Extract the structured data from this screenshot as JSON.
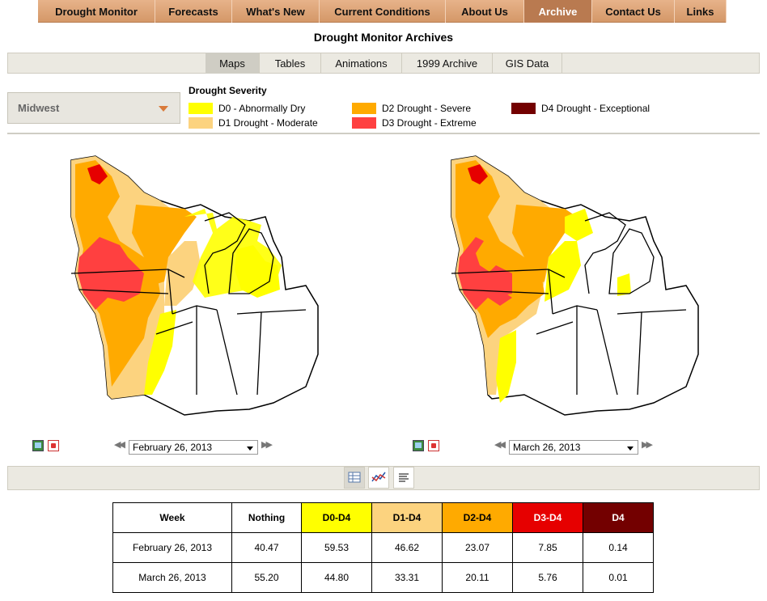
{
  "nav": {
    "items": [
      {
        "label": "Drought Monitor",
        "active": false
      },
      {
        "label": "Forecasts",
        "active": false
      },
      {
        "label": "What's New",
        "active": false
      },
      {
        "label": "Current Conditions",
        "active": false
      },
      {
        "label": "About Us",
        "active": false
      },
      {
        "label": "Archive",
        "active": true
      },
      {
        "label": "Contact Us",
        "active": false
      },
      {
        "label": "Links",
        "active": false
      }
    ]
  },
  "page_title": "Drought Monitor Archives",
  "subtabs": [
    {
      "label": "Maps",
      "active": true
    },
    {
      "label": "Tables",
      "active": false
    },
    {
      "label": "Animations",
      "active": false
    },
    {
      "label": "1999 Archive",
      "active": false
    },
    {
      "label": "GIS Data",
      "active": false
    }
  ],
  "region": {
    "selected": "Midwest"
  },
  "legend": {
    "title": "Drought Severity",
    "items": [
      {
        "label": "D0 - Abnormally Dry",
        "color": "#ffff00"
      },
      {
        "label": "D1 Drought - Moderate",
        "color": "#fcd37f"
      },
      {
        "label": "D2 Drought - Severe",
        "color": "#ffaa00"
      },
      {
        "label": "D3 Drought - Extreme",
        "color": "#ff4040"
      },
      {
        "label": "D4 Drought - Exceptional",
        "color": "#730000"
      }
    ]
  },
  "maps": [
    {
      "date": "February 26, 2013"
    },
    {
      "date": "March 26, 2013"
    }
  ],
  "table": {
    "headers": [
      "Week",
      "Nothing",
      "D0-D4",
      "D1-D4",
      "D2-D4",
      "D3-D4",
      "D4"
    ],
    "header_colors": [
      "#ffffff",
      "#ffffff",
      "#ffff00",
      "#fcd37f",
      "#ffaa00",
      "#e60000",
      "#730000"
    ],
    "header_text_colors": [
      "#000000",
      "#000000",
      "#000000",
      "#000000",
      "#000000",
      "#ffffff",
      "#ffffff"
    ],
    "rows": [
      [
        "February 26, 2013",
        "40.47",
        "59.53",
        "46.62",
        "23.07",
        "7.85",
        "0.14"
      ],
      [
        "March 26, 2013",
        "55.20",
        "44.80",
        "33.31",
        "20.11",
        "5.76",
        "0.01"
      ]
    ]
  }
}
